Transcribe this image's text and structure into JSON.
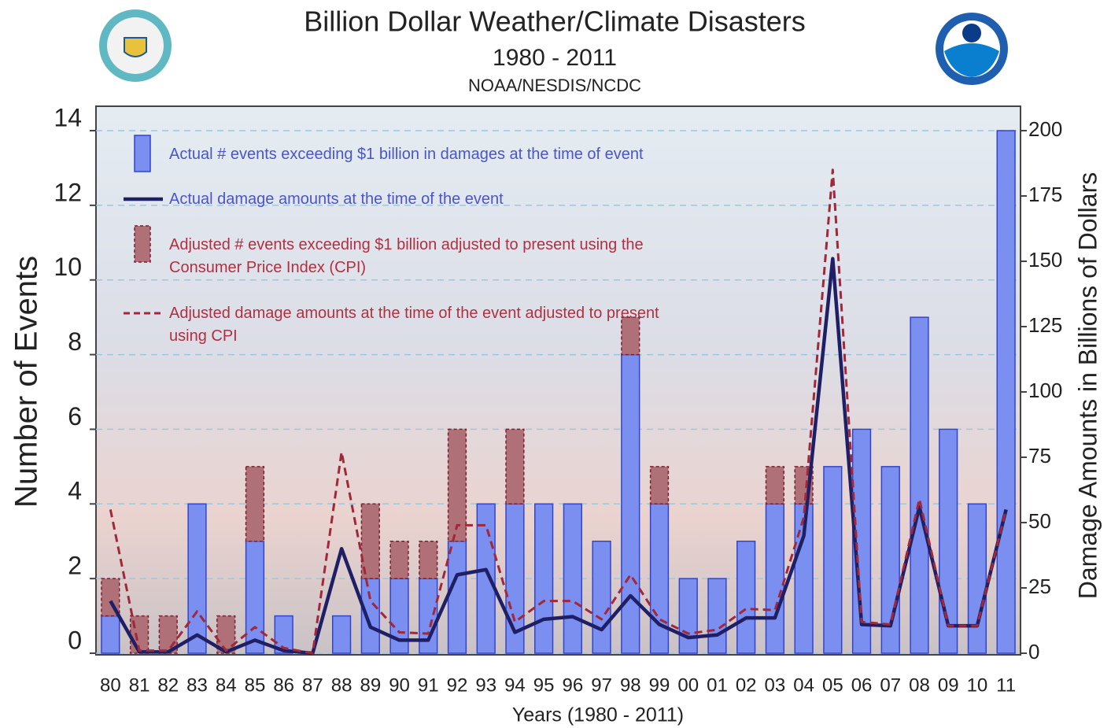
{
  "chart_data": {
    "type": "bar",
    "title": "Billion Dollar Weather/Climate Disasters",
    "subtitle": "1980 - 2011",
    "source": "NOAA/NESDIS/NCDC",
    "x_label": "Years (1980 - 2011)",
    "y_label": "Number of Events",
    "y2_label": "Damage Amounts in Billions of Dollars",
    "categories": [
      "80",
      "81",
      "82",
      "83",
      "84",
      "85",
      "86",
      "87",
      "88",
      "89",
      "90",
      "91",
      "92",
      "93",
      "94",
      "95",
      "96",
      "97",
      "98",
      "99",
      "00",
      "01",
      "02",
      "03",
      "04",
      "05",
      "06",
      "07",
      "08",
      "09",
      "10",
      "11"
    ],
    "ylim": [
      0,
      14
    ],
    "yticks": [
      0,
      2,
      4,
      6,
      8,
      10,
      12,
      14
    ],
    "y2lim": [
      0,
      200
    ],
    "y2ticks": [
      0,
      25,
      50,
      75,
      100,
      125,
      150,
      175,
      200
    ],
    "grid": true,
    "legend": "upper left",
    "series": [
      {
        "name": "Actual # events exceeding $1 billion in damages at the time of event",
        "type": "bar",
        "color": "#7b8ff0",
        "values": [
          1,
          0,
          0,
          4,
          0,
          3,
          1,
          0,
          1,
          2,
          2,
          2,
          3,
          4,
          4,
          4,
          4,
          3,
          8,
          4,
          2,
          2,
          3,
          4,
          4,
          5,
          6,
          5,
          9,
          6,
          4,
          14
        ]
      },
      {
        "name": "Actual damage amounts at the time of the event",
        "type": "line",
        "axis": "y2",
        "color": "#1f1f66",
        "values": [
          20,
          0.5,
          0.5,
          7,
          0.5,
          5,
          1,
          0,
          40,
          10,
          5,
          5,
          30,
          32,
          8,
          13,
          14,
          9,
          22,
          11,
          6,
          7,
          13.5,
          13.5,
          45,
          151,
          11,
          10.5,
          56,
          10.5,
          10.5,
          55
        ]
      },
      {
        "name": "Adjusted # events exceeding $1 billion adjusted to present using the Consumer Price Index (CPI)",
        "type": "bar",
        "color": "#b07078",
        "values": [
          1,
          1,
          1,
          0,
          1,
          2,
          0,
          0,
          0,
          2,
          1,
          1,
          3,
          0,
          2,
          0,
          0,
          0,
          1,
          1,
          0,
          0,
          0,
          1,
          1,
          0,
          0,
          0,
          0,
          0,
          0,
          0
        ]
      },
      {
        "name": "Adjusted damage amounts at the time of the event adjusted to present using CPI",
        "type": "line",
        "axis": "y2",
        "color": "#a0283a",
        "values": [
          55,
          1,
          1,
          16,
          1,
          10,
          2,
          0,
          77,
          20,
          8,
          7.5,
          49,
          49,
          12,
          20,
          20,
          13,
          30,
          13,
          7.5,
          9,
          17,
          16.5,
          52,
          185,
          12,
          11,
          59,
          10.5,
          10.5,
          55
        ]
      }
    ]
  }
}
